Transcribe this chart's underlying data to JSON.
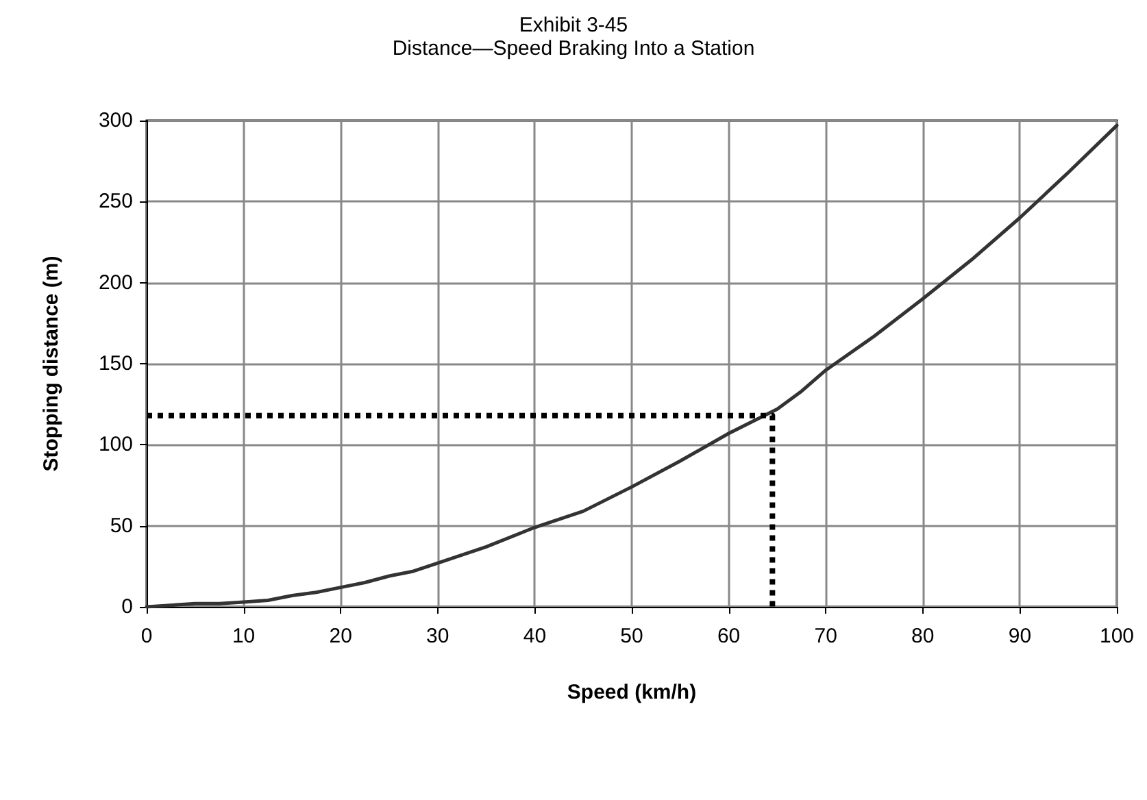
{
  "chart_data": {
    "type": "line",
    "title": "Exhibit 3-45",
    "subtitle": "Distance—Speed Braking Into a Station",
    "xlabel": "Speed (km/h)",
    "ylabel": "Stopping distance (m)",
    "xlim": [
      0,
      100
    ],
    "xticks": [
      0,
      10,
      20,
      30,
      40,
      50,
      60,
      70,
      80,
      90,
      100
    ],
    "ylim": [
      0,
      300
    ],
    "yticks": [
      0,
      50,
      100,
      150,
      200,
      250,
      300
    ],
    "grid": true,
    "marker": "none",
    "series": [
      {
        "color": "#333333",
        "line_style": "solid",
        "x": [
          0,
          5,
          7.5,
          10,
          12.5,
          15,
          17.5,
          20,
          22.5,
          25,
          27.5,
          30,
          35,
          40,
          45,
          50,
          55,
          60,
          65,
          67.5,
          70,
          75,
          80,
          85,
          90,
          95,
          100
        ],
        "values": [
          0,
          2,
          2,
          3,
          4,
          7,
          9,
          12,
          15,
          19,
          22,
          27,
          37,
          49,
          59,
          74,
          90,
          107,
          122,
          133,
          146,
          167,
          190,
          214,
          240,
          268,
          297
        ]
      },
      {
        "color": "#000000",
        "line_style": "dotted",
        "x": [
          0,
          64.5,
          64.5
        ],
        "values": [
          118,
          118,
          0
        ]
      }
    ]
  }
}
